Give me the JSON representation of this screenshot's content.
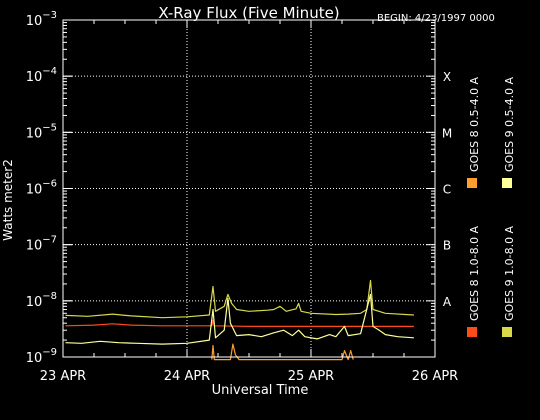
{
  "chart_data": {
    "type": "line",
    "title": "X-Ray Flux (Five Minute)",
    "begin_label": "BEGIN: 4/23/1997 0000",
    "xlabel": "Universal Time",
    "ylabel": "Watts meter2",
    "yscale": "log",
    "ylim": [
      1e-09,
      0.001
    ],
    "xlim": [
      0,
      3
    ],
    "x_units": "days since 23 APR 1997 00:00 UT",
    "x_ticks": [
      {
        "x": 0,
        "label": "23 APR"
      },
      {
        "x": 1,
        "label": "24 APR"
      },
      {
        "x": 2,
        "label": "25 APR"
      },
      {
        "x": 3,
        "label": "26 APR"
      }
    ],
    "y_ticks": [
      {
        "exp": -3
      },
      {
        "exp": -4
      },
      {
        "exp": -5
      },
      {
        "exp": -6
      },
      {
        "exp": -7
      },
      {
        "exp": -8
      },
      {
        "exp": -9
      }
    ],
    "flare_classes": [
      {
        "label": "X",
        "y": 0.0001
      },
      {
        "label": "M",
        "y": 1e-05
      },
      {
        "label": "C",
        "y": 1e-06
      },
      {
        "label": "B",
        "y": 1e-07
      },
      {
        "label": "A",
        "y": 1e-08
      }
    ],
    "grid": {
      "vertical_dotted": true,
      "horizontal_dotted_at_classes": true
    },
    "series": [
      {
        "name": "GOES 8 1.0-8.0 A",
        "color": "#ff4a1a",
        "points": [
          [
            0.02,
            3.6e-09
          ],
          [
            0.25,
            3.7e-09
          ],
          [
            0.4,
            3.9e-09
          ],
          [
            0.55,
            3.7e-09
          ],
          [
            0.8,
            3.6e-09
          ],
          [
            1.0,
            3.6e-09
          ],
          [
            1.2,
            3.6e-09
          ],
          [
            1.21,
            4.5e-09
          ],
          [
            1.22,
            3.6e-09
          ],
          [
            1.5,
            3.5e-09
          ],
          [
            1.8,
            3.5e-09
          ],
          [
            2.0,
            3.5e-09
          ],
          [
            2.3,
            3.5e-09
          ],
          [
            2.6,
            3.5e-09
          ],
          [
            2.83,
            3.5e-09
          ]
        ]
      },
      {
        "name": "GOES 8 0.5-4.0 A",
        "color": "#ff9d2e",
        "points": [
          [
            1.2,
            9e-10
          ],
          [
            1.21,
            1.6e-09
          ],
          [
            1.22,
            9e-10
          ],
          [
            1.35,
            9e-10
          ],
          [
            1.37,
            1.7e-09
          ],
          [
            1.39,
            1.1e-09
          ],
          [
            1.42,
            9e-10
          ],
          [
            2.25,
            9e-10
          ],
          [
            2.27,
            1.3e-09
          ],
          [
            2.3,
            9e-10
          ],
          [
            2.32,
            1.3e-09
          ],
          [
            2.34,
            9e-10
          ]
        ]
      },
      {
        "name": "GOES 9 1.0-8.0 A",
        "color": "#d8d84a",
        "points": [
          [
            0.02,
            5.5e-09
          ],
          [
            0.2,
            5.3e-09
          ],
          [
            0.4,
            5.8e-09
          ],
          [
            0.55,
            5.4e-09
          ],
          [
            0.8,
            5e-09
          ],
          [
            1.0,
            5.2e-09
          ],
          [
            1.18,
            5.6e-09
          ],
          [
            1.21,
            1.8e-08
          ],
          [
            1.23,
            6.5e-09
          ],
          [
            1.3,
            8e-09
          ],
          [
            1.33,
            1.3e-08
          ],
          [
            1.36,
            9e-09
          ],
          [
            1.4,
            7e-09
          ],
          [
            1.5,
            6.5e-09
          ],
          [
            1.65,
            6.8e-09
          ],
          [
            1.7,
            7e-09
          ],
          [
            1.75,
            8e-09
          ],
          [
            1.8,
            6.5e-09
          ],
          [
            1.88,
            7.2e-09
          ],
          [
            1.9,
            9e-09
          ],
          [
            1.92,
            6.5e-09
          ],
          [
            2.0,
            6e-09
          ],
          [
            2.2,
            5.7e-09
          ],
          [
            2.3,
            5.8e-09
          ],
          [
            2.4,
            6e-09
          ],
          [
            2.45,
            7e-09
          ],
          [
            2.48,
            2.3e-08
          ],
          [
            2.5,
            7e-09
          ],
          [
            2.6,
            6e-09
          ],
          [
            2.83,
            5.6e-09
          ]
        ]
      },
      {
        "name": "GOES 9 0.5-4.0 A",
        "color": "#ffff99",
        "points": [
          [
            0.02,
            1.8e-09
          ],
          [
            0.15,
            1.75e-09
          ],
          [
            0.3,
            1.9e-09
          ],
          [
            0.45,
            1.8e-09
          ],
          [
            0.6,
            1.75e-09
          ],
          [
            0.8,
            1.7e-09
          ],
          [
            1.0,
            1.75e-09
          ],
          [
            1.18,
            2e-09
          ],
          [
            1.21,
            7e-09
          ],
          [
            1.23,
            2.2e-09
          ],
          [
            1.3,
            3e-09
          ],
          [
            1.33,
            1.1e-08
          ],
          [
            1.35,
            4e-09
          ],
          [
            1.4,
            2.4e-09
          ],
          [
            1.5,
            2.5e-09
          ],
          [
            1.6,
            2.3e-09
          ],
          [
            1.7,
            2.7e-09
          ],
          [
            1.78,
            3e-09
          ],
          [
            1.85,
            2.4e-09
          ],
          [
            1.9,
            3e-09
          ],
          [
            1.95,
            2.3e-09
          ],
          [
            2.05,
            2.1e-09
          ],
          [
            2.15,
            2.5e-09
          ],
          [
            2.2,
            2.3e-09
          ],
          [
            2.27,
            3.5e-09
          ],
          [
            2.3,
            2.4e-09
          ],
          [
            2.4,
            2.6e-09
          ],
          [
            2.48,
            1.3e-08
          ],
          [
            2.5,
            3.5e-09
          ],
          [
            2.55,
            3e-09
          ],
          [
            2.6,
            2.5e-09
          ],
          [
            2.7,
            2.3e-09
          ],
          [
            2.83,
            2.2e-09
          ]
        ]
      }
    ]
  }
}
